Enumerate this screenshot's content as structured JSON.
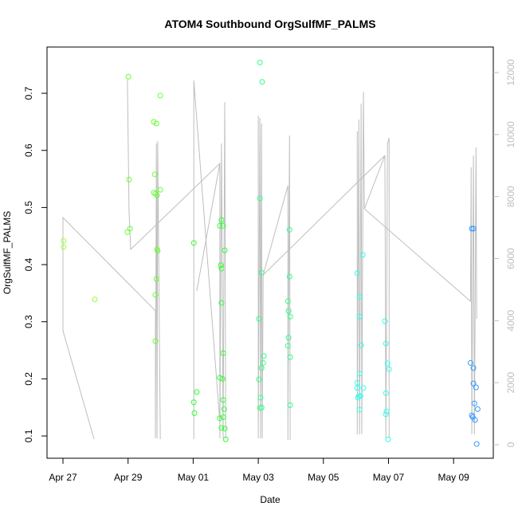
{
  "chart_data": {
    "type": "scatter",
    "title": "ATOM4 Southbound OrgSulfMF_PALMS",
    "x_label": "Date",
    "y_label": "OrgSulfMF_PALMS",
    "xlim": [
      -0.49,
      13.22
    ],
    "xticks": [
      {
        "value": 0,
        "label": "Apr 27"
      },
      {
        "value": 2,
        "label": "Apr 29"
      },
      {
        "value": 4,
        "label": "May 01"
      },
      {
        "value": 6,
        "label": "May 03"
      },
      {
        "value": 8,
        "label": "May 05"
      },
      {
        "value": 10,
        "label": "May 07"
      },
      {
        "value": 12,
        "label": "May 09"
      }
    ],
    "ylim": [
      0.061,
      0.781
    ],
    "yticks": [
      0.1,
      0.2,
      0.3,
      0.4,
      0.5,
      0.6,
      0.7
    ],
    "y2lim": [
      -437,
      12822
    ],
    "y2ticks": [
      0,
      2000,
      4000,
      6000,
      8000,
      10000,
      12000
    ],
    "series": [
      {
        "type": "line",
        "axis": "y2",
        "color": "#bebebe",
        "x": [
          0.955,
          0,
          0,
          2.84,
          2.84,
          2.87,
          2.89,
          2.91,
          2.99,
          null,
          1.98,
          2.03,
          2.08,
          4.82,
          4.82,
          4.87,
          4.92,
          4.97,
          5.0,
          null,
          4.02,
          4.02,
          4.82,
          null,
          4.11,
          4.82,
          null,
          6.0,
          6.0,
          6.05,
          6.07,
          6.1,
          6.12,
          6.15,
          6.91,
          6.91,
          6.96,
          6.98,
          null,
          6.15,
          9.89,
          null,
          9.04,
          9.04,
          9.09,
          9.11,
          9.16,
          9.18,
          9.23,
          9.26,
          9.89,
          9.92,
          9.97,
          10.02,
          10.02,
          null,
          9.26,
          12.52,
          12.54,
          12.56,
          12.61,
          12.64,
          12.69,
          12.71
        ],
        "values": [
          180,
          3674,
          7323,
          4317,
          206,
          9712,
          206,
          9789,
          180,
          null,
          11768,
          7528,
          6295,
          9070,
          206,
          9712,
          206,
          11048,
          206,
          null,
          180,
          11742,
          719,
          null,
          4959,
          9070,
          null,
          10612,
          206,
          10534,
          206,
          10355,
          206,
          5473,
          8350,
          154,
          9969,
          154,
          null,
          5473,
          9327,
          null,
          10098,
          334,
          10483,
          334,
          10997,
          334,
          11383,
          7605,
          9327,
          206,
          9712,
          9892,
          206,
          null,
          7605,
          4625,
          8941,
          334,
          9327,
          334,
          9584,
          4060
        ]
      },
      {
        "color": "#99ff33",
        "x": [
          0.02,
          0.02,
          0.98
        ],
        "values": [
          0.442,
          0.431,
          0.339
        ]
      },
      {
        "color": "#66ff33",
        "x": [
          2.01,
          2.03,
          1.98,
          2.06,
          2.79,
          2.87,
          2.82,
          2.79,
          2.84,
          2.89,
          2.99,
          2.99,
          2.89,
          2.91,
          2.87,
          2.84,
          2.84
        ],
        "values": [
          0.729,
          0.549,
          0.457,
          0.463,
          0.65,
          0.647,
          0.558,
          0.526,
          0.524,
          0.521,
          0.531,
          0.696,
          0.427,
          0.424,
          0.375,
          0.347,
          0.266
        ]
      },
      {
        "color": "#33ff33",
        "x": [
          4.02,
          4.02,
          4.11,
          4.04,
          4.82,
          4.87,
          4.92,
          4.97,
          4.85,
          4.87,
          4.87,
          4.92,
          4.82,
          4.9,
          4.82,
          4.95,
          4.92,
          4.87,
          4.97,
          4.92,
          5.0
        ],
        "values": [
          0.438,
          0.159,
          0.177,
          0.14,
          0.468,
          0.478,
          0.468,
          0.425,
          0.399,
          0.393,
          0.333,
          0.245,
          0.202,
          0.2,
          0.131,
          0.147,
          0.133,
          0.114,
          0.113,
          0.163,
          0.094
        ]
      },
      {
        "color": "#33ff88",
        "x": [
          6.05,
          6.12,
          6.05,
          6.1,
          6.02,
          6.17,
          6.15,
          6.1,
          6.02,
          6.07,
          6.1,
          6.05,
          6.96,
          6.96,
          6.91,
          6.93,
          6.98,
          6.93,
          6.91,
          6.98,
          6.98
        ],
        "values": [
          0.754,
          0.72,
          0.516,
          0.386,
          0.305,
          0.24,
          0.228,
          0.219,
          0.199,
          0.167,
          0.15,
          0.149,
          0.461,
          0.379,
          0.336,
          0.319,
          0.309,
          0.272,
          0.258,
          0.238,
          0.154
        ]
      },
      {
        "color": "#33ffee",
        "x": [
          9.04,
          9.21,
          9.11,
          9.11,
          9.16,
          9.11,
          9.04,
          9.04,
          9.23,
          9.09,
          9.14,
          9.06,
          9.11,
          9.89,
          9.92,
          9.97,
          10.02,
          9.92,
          9.94,
          9.92,
          9.99
        ],
        "values": [
          0.385,
          0.417,
          0.309,
          0.344,
          0.259,
          0.209,
          0.193,
          0.184,
          0.184,
          0.17,
          0.17,
          0.167,
          0.146,
          0.301,
          0.262,
          0.227,
          0.217,
          0.175,
          0.143,
          0.138,
          0.094
        ]
      },
      {
        "color": "#3399ff",
        "x": [
          12.56,
          12.61,
          12.52,
          12.61,
          12.61,
          12.69,
          12.64,
          12.74,
          12.56,
          12.59,
          12.66,
          12.71
        ],
        "values": [
          0.463,
          0.463,
          0.228,
          0.219,
          0.192,
          0.185,
          0.157,
          0.147,
          0.136,
          0.133,
          0.128,
          0.086
        ]
      }
    ]
  }
}
